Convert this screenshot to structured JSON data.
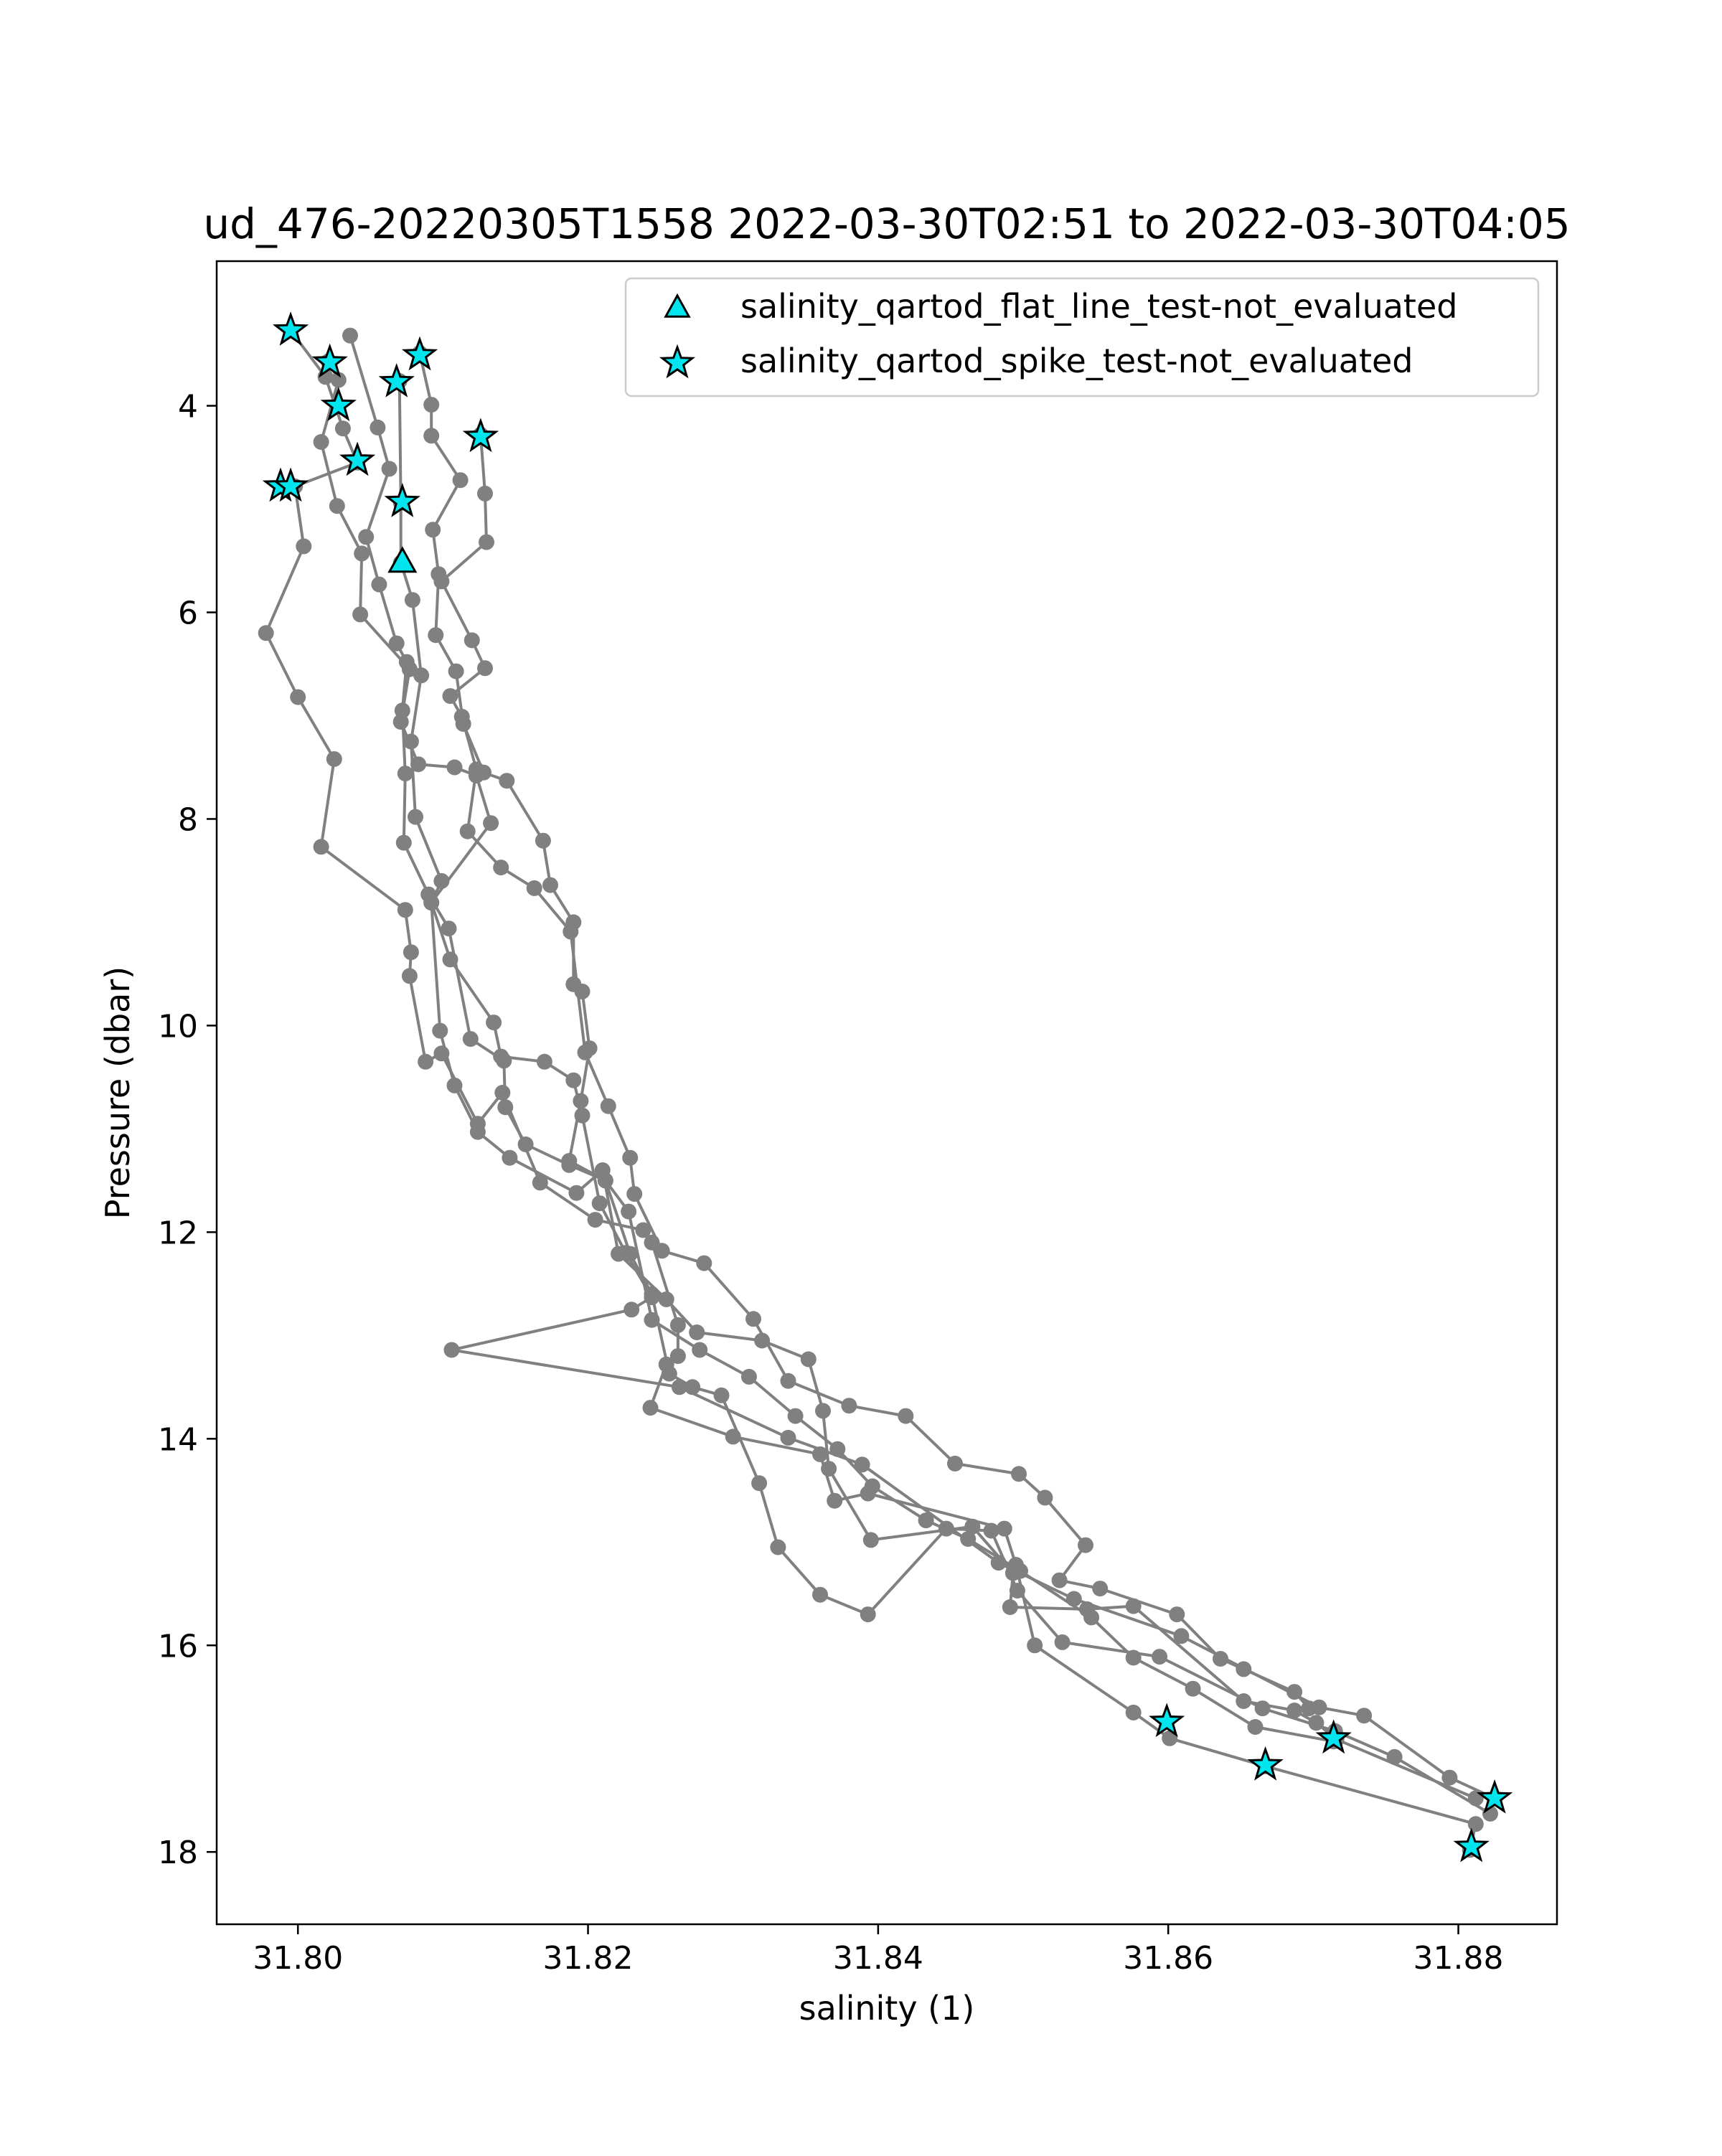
{
  "chart_data": {
    "type": "scatter",
    "title": "ud_476-20220305T1558 2022-03-30T02:51 to 2022-03-30T04:05",
    "xlabel": "salinity (1)",
    "ylabel": "Pressure (dbar)",
    "xlim": [
      31.7944,
      31.8868
    ],
    "ylim": [
      18.7,
      2.6
    ],
    "y_inverted": true,
    "grid": false,
    "legend_placement": "top-right",
    "xticks": [
      31.8,
      31.82,
      31.84,
      31.86,
      31.88
    ],
    "xtick_labels": [
      "31.80",
      "31.82",
      "31.84",
      "31.86",
      "31.88"
    ],
    "yticks": [
      4,
      6,
      8,
      10,
      12,
      14,
      16,
      18
    ],
    "ytick_labels": [
      "4",
      "6",
      "8",
      "10",
      "12",
      "14",
      "16",
      "18"
    ],
    "colors": {
      "profile": "#808080",
      "flag_fill": "#00e5ee",
      "flag_edge": "#000000",
      "frame": "#000000"
    },
    "series": [
      {
        "points": [
          [
            31.7995,
            3.27
          ],
          [
            31.8019,
            3.72
          ],
          [
            31.8031,
            4.22
          ],
          [
            31.8041,
            4.55
          ],
          [
            31.7998,
            4.78
          ],
          [
            31.8004,
            5.36
          ],
          [
            31.7978,
            6.2
          ],
          [
            31.8,
            6.82
          ],
          [
            31.8025,
            7.42
          ],
          [
            31.8016,
            8.27
          ],
          [
            31.8074,
            8.88
          ],
          [
            31.8078,
            9.29
          ],
          [
            31.8077,
            9.52
          ],
          [
            31.8088,
            10.35
          ],
          [
            31.8099,
            10.27
          ],
          [
            31.8124,
            10.95
          ],
          [
            31.8141,
            10.65
          ],
          [
            31.8167,
            11.52
          ],
          [
            31.8205,
            11.88
          ],
          [
            31.8238,
            11.98
          ],
          [
            31.8244,
            12.1
          ],
          [
            31.8262,
            12.9
          ],
          [
            31.8262,
            13.2
          ],
          [
            31.8254,
            13.28
          ],
          [
            31.8243,
            13.7
          ],
          [
            31.83,
            13.98
          ],
          [
            31.836,
            14.15
          ],
          [
            31.837,
            14.6
          ],
          [
            31.8393,
            14.53
          ],
          [
            31.8487,
            14.87
          ],
          [
            31.8495,
            15.22
          ],
          [
            31.8508,
            16.0
          ],
          [
            31.8576,
            16.65
          ],
          [
            31.8601,
            16.9
          ],
          [
            31.8667,
            17.17
          ],
          [
            31.8812,
            17.73
          ],
          [
            31.8808,
            17.98
          ]
        ]
      },
      {
        "points": [
          [
            31.8021,
            3.57
          ],
          [
            31.8028,
            3.75
          ],
          [
            31.8016,
            4.35
          ],
          [
            31.8027,
            4.97
          ],
          [
            31.8044,
            5.43
          ],
          [
            31.8043,
            6.02
          ],
          [
            31.8077,
            6.55
          ],
          [
            31.8071,
            7.06
          ],
          [
            31.8083,
            7.47
          ],
          [
            31.8108,
            7.5
          ],
          [
            31.8123,
            7.58
          ],
          [
            31.8133,
            8.04
          ],
          [
            31.8092,
            8.81
          ],
          [
            31.8105,
            9.36
          ],
          [
            31.8135,
            9.97
          ],
          [
            31.814,
            10.3
          ],
          [
            31.817,
            10.35
          ],
          [
            31.819,
            10.53
          ],
          [
            31.8196,
            10.87
          ],
          [
            31.8208,
            11.72
          ],
          [
            31.8226,
            12.2
          ],
          [
            31.8244,
            12.63
          ],
          [
            31.823,
            12.75
          ],
          [
            31.8106,
            13.14
          ],
          [
            31.8263,
            13.5
          ],
          [
            31.8338,
            13.99
          ],
          [
            31.8389,
            14.25
          ],
          [
            31.8483,
            15.2
          ],
          [
            31.8535,
            15.55
          ],
          [
            31.8609,
            15.91
          ],
          [
            31.8704,
            16.6
          ],
          [
            31.8735,
            16.68
          ],
          [
            31.8794,
            17.28
          ],
          [
            31.8825,
            17.48
          ]
        ]
      },
      {
        "points": [
          [
            31.807,
            3.76
          ],
          [
            31.8071,
            4.94
          ],
          [
            31.8071,
            5.52
          ],
          [
            31.8079,
            5.88
          ],
          [
            31.8085,
            6.61
          ],
          [
            31.8078,
            7.25
          ],
          [
            31.8081,
            7.98
          ],
          [
            31.8099,
            8.6
          ],
          [
            31.8092,
            8.81
          ],
          [
            31.8098,
            10.05
          ],
          [
            31.8108,
            10.58
          ],
          [
            31.8124,
            11.03
          ],
          [
            31.8146,
            11.28
          ],
          [
            31.8192,
            11.62
          ],
          [
            31.821,
            11.4
          ],
          [
            31.8221,
            12.21
          ],
          [
            31.8254,
            12.65
          ],
          [
            31.8275,
            12.97
          ],
          [
            31.832,
            13.05
          ],
          [
            31.8352,
            13.23
          ],
          [
            31.8362,
            13.73
          ],
          [
            31.8366,
            14.29
          ],
          [
            31.8395,
            14.98
          ],
          [
            31.8465,
            14.85
          ],
          [
            31.8493,
            15.3
          ],
          [
            31.8491,
            15.63
          ],
          [
            31.8544,
            15.65
          ],
          [
            31.8576,
            15.62
          ],
          [
            31.8652,
            16.54
          ],
          [
            31.8687,
            16.63
          ],
          [
            31.8702,
            16.75
          ],
          [
            31.8716,
            16.91
          ],
          [
            31.8812,
            17.48
          ]
        ]
      },
      {
        "points": [
          [
            31.8084,
            3.49
          ],
          [
            31.8092,
            3.99
          ],
          [
            31.8092,
            4.29
          ],
          [
            31.8112,
            4.72
          ],
          [
            31.8093,
            5.2
          ],
          [
            31.8097,
            5.63
          ],
          [
            31.8095,
            6.22
          ],
          [
            31.8109,
            6.57
          ],
          [
            31.8114,
            7.08
          ],
          [
            31.8128,
            7.55
          ],
          [
            31.8144,
            7.63
          ],
          [
            31.8169,
            8.21
          ],
          [
            31.8174,
            8.64
          ],
          [
            31.819,
            9.0
          ],
          [
            31.819,
            9.6
          ],
          [
            31.8196,
            9.67
          ],
          [
            31.8201,
            10.22
          ],
          [
            31.8195,
            10.73
          ],
          [
            31.8187,
            11.31
          ],
          [
            31.8212,
            11.5
          ],
          [
            31.8229,
            12.21
          ],
          [
            31.8244,
            12.6
          ],
          [
            31.8256,
            13.37
          ],
          [
            31.8272,
            13.5
          ],
          [
            31.8292,
            13.58
          ],
          [
            31.8318,
            14.43
          ],
          [
            31.8331,
            15.05
          ],
          [
            31.836,
            15.51
          ],
          [
            31.8393,
            15.7
          ],
          [
            31.8447,
            14.87
          ],
          [
            31.8478,
            14.89
          ],
          [
            31.8496,
            15.47
          ],
          [
            31.8527,
            15.97
          ],
          [
            31.8594,
            16.11
          ],
          [
            31.8665,
            16.61
          ],
          [
            31.8715,
            16.83
          ],
          [
            31.8756,
            17.08
          ],
          [
            31.8822,
            17.63
          ]
        ]
      },
      {
        "points": [
          [
            31.8126,
            4.28
          ],
          [
            31.8129,
            4.85
          ],
          [
            31.813,
            5.32
          ],
          [
            31.8099,
            5.7
          ],
          [
            31.812,
            6.27
          ],
          [
            31.8129,
            6.54
          ],
          [
            31.8105,
            6.81
          ],
          [
            31.8113,
            7.01
          ],
          [
            31.8123,
            7.52
          ],
          [
            31.8117,
            8.12
          ],
          [
            31.814,
            8.47
          ],
          [
            31.8163,
            8.67
          ],
          [
            31.8188,
            9.09
          ],
          [
            31.8198,
            10.26
          ],
          [
            31.8214,
            10.78
          ],
          [
            31.8229,
            11.28
          ],
          [
            31.8232,
            11.63
          ],
          [
            31.8251,
            12.18
          ],
          [
            31.828,
            12.3
          ],
          [
            31.8314,
            12.84
          ],
          [
            31.8338,
            13.44
          ],
          [
            31.838,
            13.68
          ],
          [
            31.8419,
            13.78
          ],
          [
            31.8453,
            14.24
          ],
          [
            31.8497,
            14.34
          ],
          [
            31.8515,
            14.57
          ],
          [
            31.8543,
            15.03
          ],
          [
            31.8525,
            15.37
          ],
          [
            31.8553,
            15.45
          ],
          [
            31.8606,
            15.7
          ],
          [
            31.8636,
            16.13
          ],
          [
            31.8652,
            16.23
          ],
          [
            31.8687,
            16.45
          ],
          [
            31.8697,
            16.61
          ]
        ]
      },
      {
        "points": [
          [
            31.8036,
            3.32
          ],
          [
            31.8055,
            4.21
          ],
          [
            31.8063,
            4.61
          ],
          [
            31.8047,
            5.27
          ],
          [
            31.8056,
            5.73
          ],
          [
            31.8068,
            6.3
          ],
          [
            31.8075,
            6.48
          ],
          [
            31.8072,
            6.95
          ],
          [
            31.8074,
            7.56
          ],
          [
            31.8073,
            8.23
          ],
          [
            31.809,
            8.73
          ],
          [
            31.8104,
            9.06
          ],
          [
            31.8119,
            10.13
          ],
          [
            31.8142,
            10.34
          ],
          [
            31.8143,
            10.79
          ],
          [
            31.8157,
            11.15
          ],
          [
            31.8187,
            11.35
          ],
          [
            31.8212,
            11.5
          ],
          [
            31.8228,
            11.8
          ],
          [
            31.8244,
            12.85
          ],
          [
            31.8277,
            13.14
          ],
          [
            31.8311,
            13.4
          ],
          [
            31.8343,
            13.78
          ],
          [
            31.8372,
            14.1
          ],
          [
            31.8396,
            14.46
          ],
          [
            31.8433,
            14.79
          ],
          [
            31.8462,
            14.97
          ],
          [
            31.8498,
            15.28
          ],
          [
            31.8547,
            15.73
          ],
          [
            31.8576,
            16.12
          ],
          [
            31.8617,
            16.42
          ],
          [
            31.866,
            16.79
          ],
          [
            31.8714,
            16.93
          ]
        ]
      }
    ],
    "flag_series": [
      {
        "name": "salinity_qartod_flat_line_test-not_evaluated",
        "marker": "triangle",
        "points": [
          [
            31.8072,
            5.52
          ]
        ]
      },
      {
        "name": "salinity_qartod_spike_test-not_evaluated",
        "marker": "star",
        "points": [
          [
            31.7995,
            3.27
          ],
          [
            31.8022,
            3.58
          ],
          [
            31.8028,
            4.0
          ],
          [
            31.8068,
            3.77
          ],
          [
            31.8084,
            3.51
          ],
          [
            31.8126,
            4.3
          ],
          [
            31.8041,
            4.53
          ],
          [
            31.7988,
            4.78
          ],
          [
            31.7995,
            4.78
          ],
          [
            31.8072,
            4.93
          ],
          [
            31.8599,
            16.74
          ],
          [
            31.8667,
            17.16
          ],
          [
            31.8714,
            16.9
          ],
          [
            31.8825,
            17.48
          ],
          [
            31.8809,
            17.95
          ]
        ]
      }
    ]
  }
}
